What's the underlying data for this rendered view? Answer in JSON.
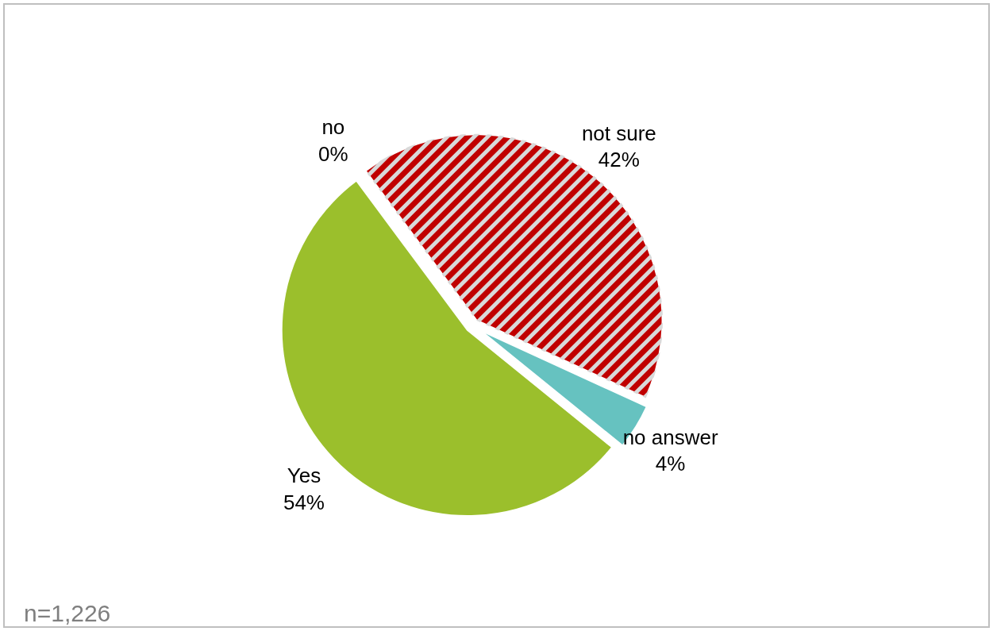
{
  "chart_data": {
    "type": "pie",
    "categories": [
      "Yes",
      "no",
      "not sure",
      "no answer"
    ],
    "values": [
      54,
      0,
      42,
      4
    ],
    "colors": [
      "#9bbf2c",
      "#4f81bd",
      "#c00000",
      "#66c2c0"
    ],
    "value_labels": [
      "54%",
      "0%",
      "42%",
      "4%"
    ],
    "annotations": [
      "n=1,226"
    ]
  }
}
